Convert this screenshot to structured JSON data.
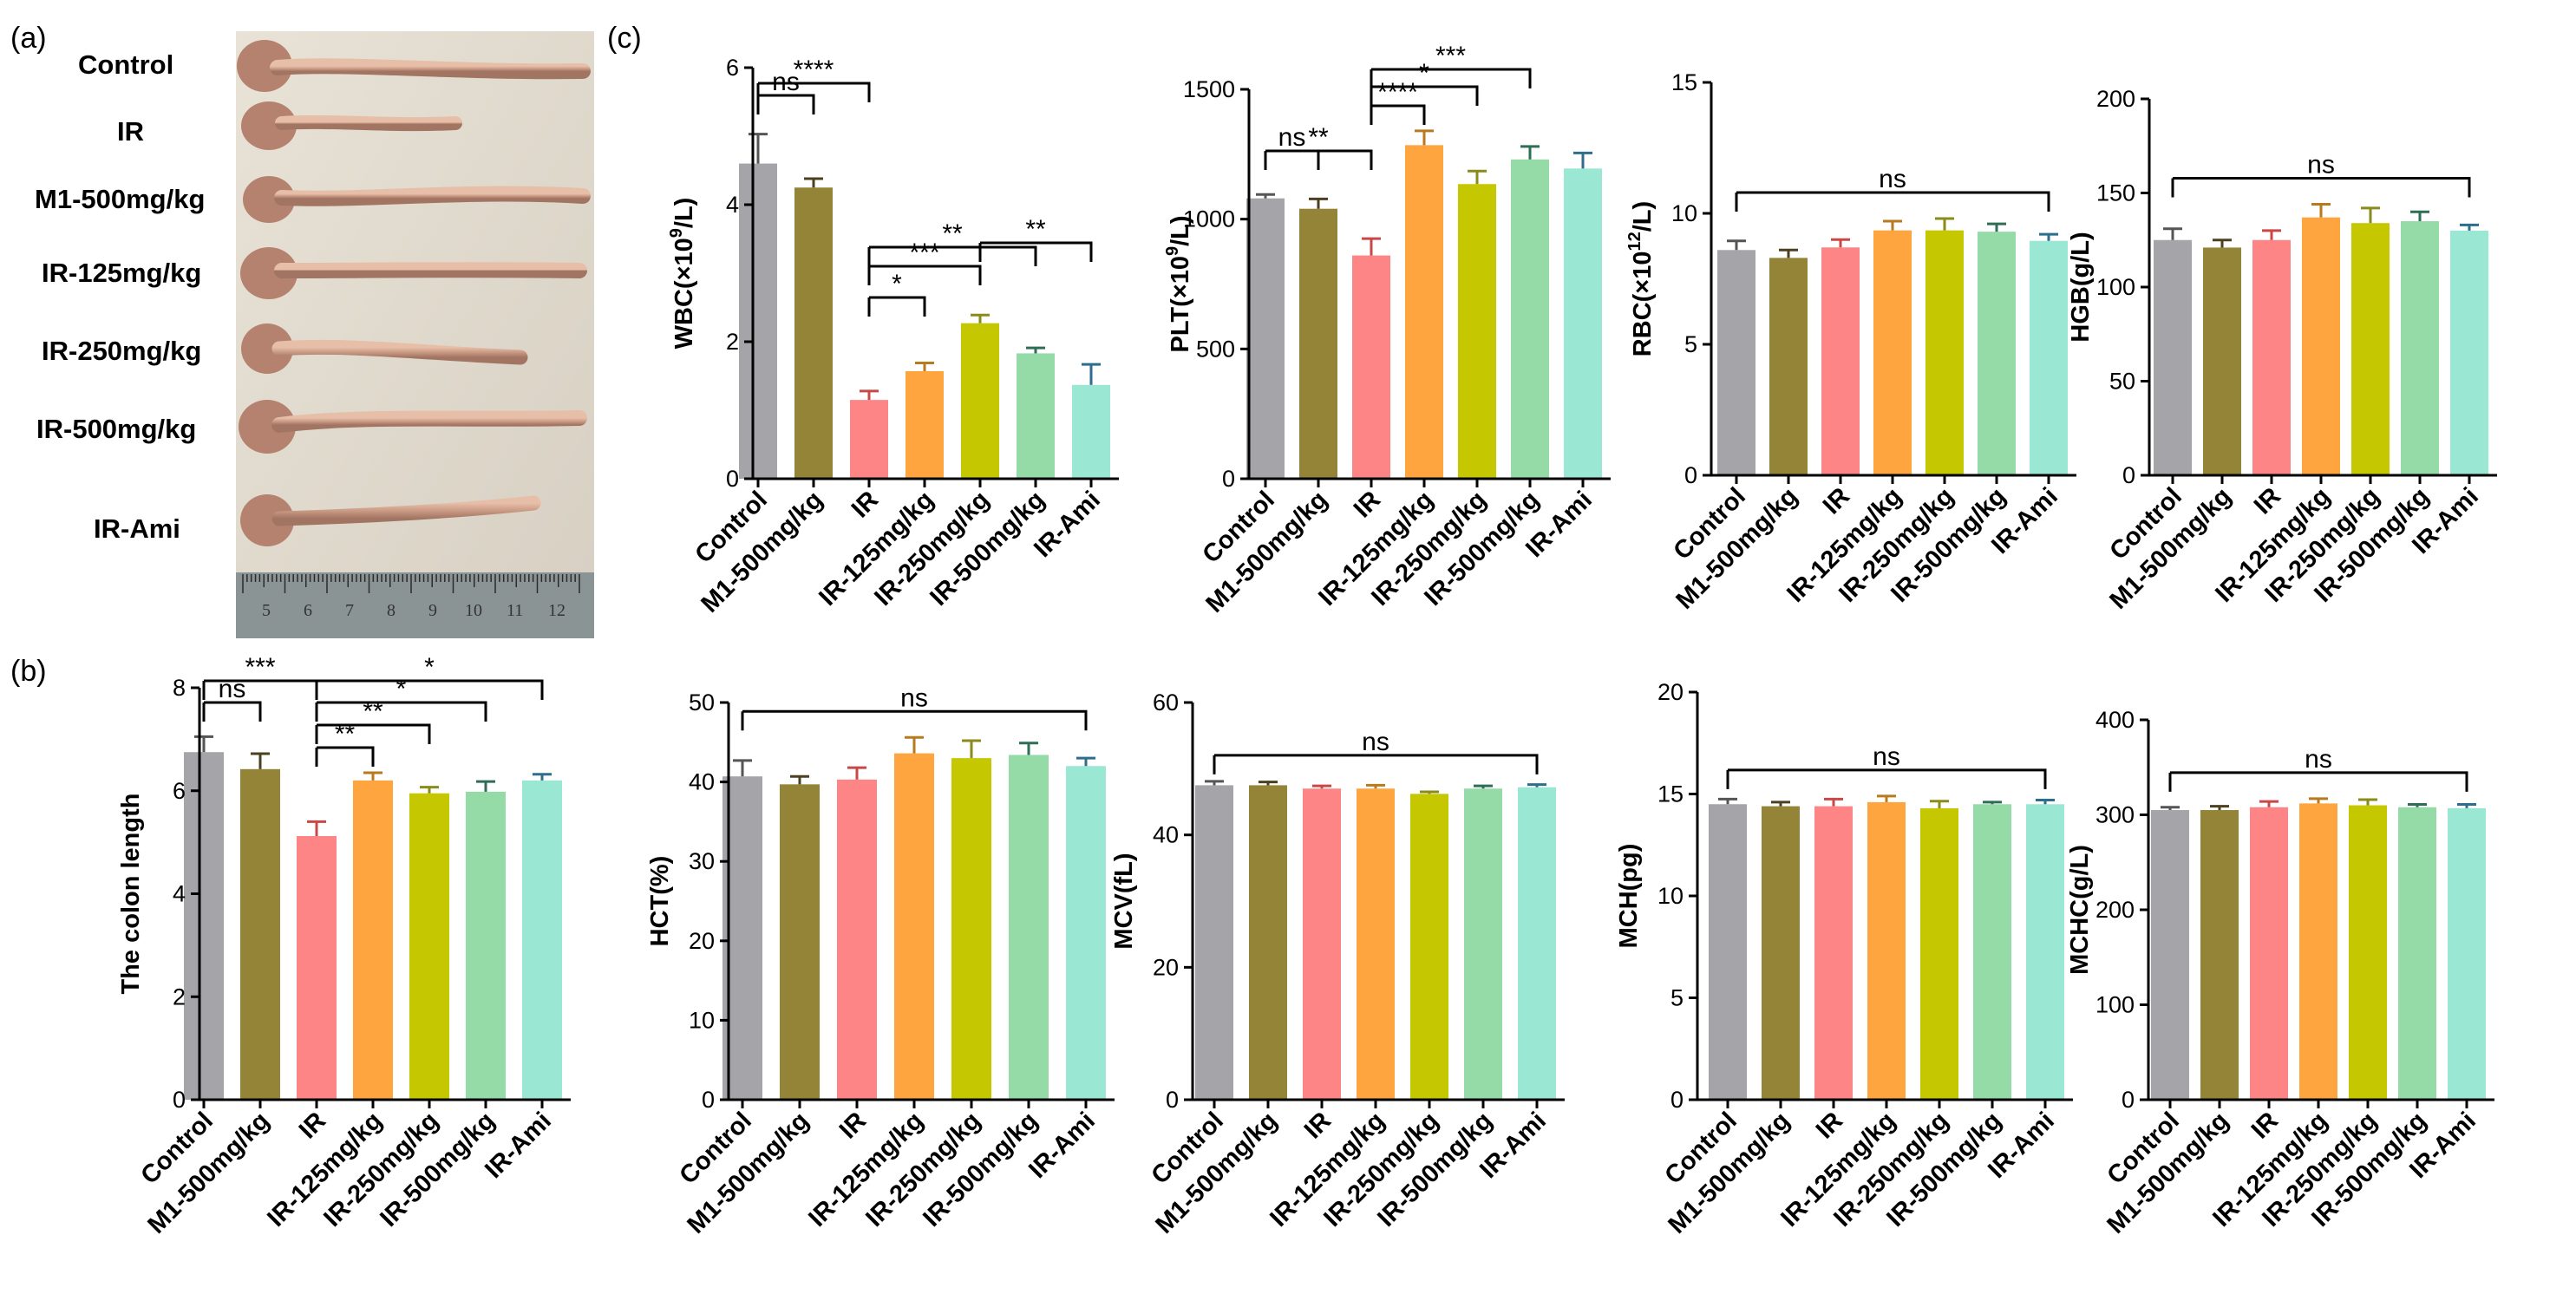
{
  "panel_labels": {
    "a": "(a)",
    "b": "(b)",
    "c": "(c)"
  },
  "photo": {
    "labels": [
      "Control",
      "IR",
      "M1-500mg/kg",
      "IR-125mg/kg",
      "IR-250mg/kg",
      "IR-500mg/kg",
      "IR-Ami"
    ],
    "ruler_numbers": [
      "5",
      "6",
      "7",
      "8",
      "9",
      "10",
      "11",
      "12"
    ]
  },
  "colors": {
    "Control": "#a5a4a8",
    "M1-500mg/kg": "#948437",
    "IR": "#fd8585",
    "IR-125mg/kg": "#ffa540",
    "IR-250mg/kg": "#c5c700",
    "IR-500mg/kg": "#94dba8",
    "IR-Ami": "#9ae8d4"
  },
  "error_colors": [
    "#555555",
    "#4b4020",
    "#c84848",
    "#b87a1c",
    "#8a8b1a",
    "#2d6e54",
    "#2d6e8c"
  ],
  "chart_data": [
    {
      "id": "colon",
      "type": "bar",
      "ylabel": "The colon length",
      "categories": [
        "Control",
        "M1-500mg/kg",
        "IR",
        "IR-125mg/kg",
        "IR-250mg/kg",
        "IR-500mg/kg",
        "IR-Ami"
      ],
      "values": [
        6.75,
        6.42,
        5.12,
        6.2,
        5.95,
        5.98,
        6.2
      ],
      "errors": [
        0.3,
        0.3,
        0.28,
        0.15,
        0.12,
        0.2,
        0.12
      ],
      "ylim": [
        0,
        8
      ],
      "yticks": [
        0,
        2,
        4,
        6,
        8
      ],
      "significance": [
        {
          "from": 0,
          "to": 1,
          "label": "ns"
        },
        {
          "from": 0,
          "to": 2,
          "label": "***"
        },
        {
          "from": 2,
          "to": 3,
          "label": "**"
        },
        {
          "from": 2,
          "to": 4,
          "label": "**"
        },
        {
          "from": 2,
          "to": 5,
          "label": "*"
        },
        {
          "from": 2,
          "to": 6,
          "label": "*"
        }
      ]
    },
    {
      "id": "wbc",
      "type": "bar",
      "ylabel_parts": [
        "WBC(×10",
        "9",
        "/L)"
      ],
      "categories": [
        "Control",
        "M1-500mg/kg",
        "IR",
        "IR-125mg/kg",
        "IR-250mg/kg",
        "IR-500mg/kg",
        "IR-Ami"
      ],
      "values": [
        4.6,
        4.25,
        1.15,
        1.57,
        2.27,
        1.83,
        1.37
      ],
      "errors": [
        0.43,
        0.13,
        0.13,
        0.12,
        0.12,
        0.08,
        0.3
      ],
      "ylim": [
        0,
        6
      ],
      "yticks": [
        0,
        2,
        4,
        6
      ],
      "significance": [
        {
          "from": 0,
          "to": 1,
          "label": "ns"
        },
        {
          "from": 0,
          "to": 2,
          "label": "****"
        },
        {
          "from": 2,
          "to": 3,
          "label": "*"
        },
        {
          "from": 2,
          "to": 4,
          "label": "***"
        },
        {
          "from": 2,
          "to": 5,
          "label": "**"
        },
        {
          "from": 4,
          "to": 6,
          "label": "**"
        }
      ]
    },
    {
      "id": "plt",
      "type": "bar",
      "ylabel_parts": [
        "PLT(×10",
        "9",
        "/L)"
      ],
      "categories": [
        "Control",
        "M1-500mg/kg",
        "IR",
        "IR-125mg/kg",
        "IR-250mg/kg",
        "IR-500mg/kg",
        "IR-Ami"
      ],
      "values": [
        1080,
        1040,
        860,
        1285,
        1135,
        1230,
        1195
      ],
      "errors": [
        15,
        38,
        65,
        55,
        50,
        50,
        60
      ],
      "ylim": [
        0,
        1500
      ],
      "yticks": [
        0,
        500,
        1000,
        1500
      ],
      "significance": [
        {
          "from": 0,
          "to": 1,
          "label": "ns"
        },
        {
          "from": 0,
          "to": 2,
          "label": "**"
        },
        {
          "from": 2,
          "to": 3,
          "label": "****"
        },
        {
          "from": 2,
          "to": 4,
          "label": "*"
        },
        {
          "from": 2,
          "to": 5,
          "label": "***"
        }
      ]
    },
    {
      "id": "rbc",
      "type": "bar",
      "ylabel_parts": [
        "RBC(×10",
        "12",
        "/L)"
      ],
      "categories": [
        "Control",
        "M1-500mg/kg",
        "IR",
        "IR-125mg/kg",
        "IR-250mg/kg",
        "IR-500mg/kg",
        "IR-Ami"
      ],
      "values": [
        8.6,
        8.3,
        8.7,
        9.35,
        9.35,
        9.3,
        8.95
      ],
      "errors": [
        0.35,
        0.3,
        0.3,
        0.35,
        0.45,
        0.3,
        0.25
      ],
      "ylim": [
        0,
        15
      ],
      "yticks": [
        0,
        5,
        10,
        15
      ],
      "significance": [
        {
          "from": 0,
          "to": 6,
          "label": "ns"
        }
      ]
    },
    {
      "id": "hgb",
      "type": "bar",
      "ylabel": "HGB(g/L)",
      "categories": [
        "Control",
        "M1-500mg/kg",
        "IR",
        "IR-125mg/kg",
        "IR-250mg/kg",
        "IR-500mg/kg",
        "IR-Ami"
      ],
      "values": [
        125,
        121,
        125,
        137,
        134,
        135,
        130
      ],
      "errors": [
        6,
        4,
        5,
        7,
        8,
        5,
        3
      ],
      "ylim": [
        0,
        200
      ],
      "yticks": [
        0,
        50,
        100,
        150,
        200
      ],
      "significance": [
        {
          "from": 0,
          "to": 6,
          "label": "ns"
        }
      ]
    },
    {
      "id": "hct",
      "type": "bar",
      "ylabel": "HCT(%)",
      "categories": [
        "Control",
        "M1-500mg/kg",
        "IR",
        "IR-125mg/kg",
        "IR-250mg/kg",
        "IR-500mg/kg",
        "IR-Ami"
      ],
      "values": [
        40.7,
        39.7,
        40.3,
        43.6,
        43.0,
        43.4,
        42.0
      ],
      "errors": [
        2.0,
        1.0,
        1.5,
        2.0,
        2.2,
        1.5,
        1.0
      ],
      "ylim": [
        0,
        50
      ],
      "yticks": [
        0,
        10,
        20,
        30,
        40,
        50
      ],
      "significance": [
        {
          "from": 0,
          "to": 6,
          "label": "ns"
        }
      ]
    },
    {
      "id": "mcv",
      "type": "bar",
      "ylabel": "MCV(fL)",
      "categories": [
        "Control",
        "M1-500mg/kg",
        "IR",
        "IR-125mg/kg",
        "IR-250mg/kg",
        "IR-500mg/kg",
        "IR-Ami"
      ],
      "values": [
        47.5,
        47.5,
        47.0,
        47.0,
        46.2,
        47.0,
        47.2
      ],
      "errors": [
        0.6,
        0.5,
        0.4,
        0.5,
        0.3,
        0.4,
        0.4
      ],
      "ylim": [
        0,
        60
      ],
      "yticks": [
        0,
        20,
        40,
        60
      ],
      "significance": [
        {
          "from": 0,
          "to": 6,
          "label": "ns"
        }
      ]
    },
    {
      "id": "mch",
      "type": "bar",
      "ylabel": "MCH(pg)",
      "categories": [
        "Control",
        "M1-500mg/kg",
        "IR",
        "IR-125mg/kg",
        "IR-250mg/kg",
        "IR-500mg/kg",
        "IR-Ami"
      ],
      "values": [
        14.5,
        14.4,
        14.4,
        14.6,
        14.3,
        14.5,
        14.5
      ],
      "errors": [
        0.25,
        0.2,
        0.35,
        0.3,
        0.35,
        0.1,
        0.2
      ],
      "ylim": [
        0,
        20
      ],
      "yticks": [
        0,
        5,
        10,
        15,
        20
      ],
      "significance": [
        {
          "from": 0,
          "to": 6,
          "label": "ns"
        }
      ]
    },
    {
      "id": "mchc",
      "type": "bar",
      "ylabel": "MCHC(g/L)",
      "categories": [
        "Control",
        "M1-500mg/kg",
        "IR",
        "IR-125mg/kg",
        "IR-250mg/kg",
        "IR-500mg/kg",
        "IR-Ami"
      ],
      "values": [
        305,
        305,
        308,
        312,
        310,
        308,
        307
      ],
      "errors": [
        3,
        4,
        6,
        5,
        6,
        3,
        4
      ],
      "ylim": [
        0,
        400
      ],
      "yticks": [
        0,
        100,
        200,
        300,
        400
      ],
      "significance": [
        {
          "from": 0,
          "to": 6,
          "label": "ns"
        }
      ]
    }
  ]
}
